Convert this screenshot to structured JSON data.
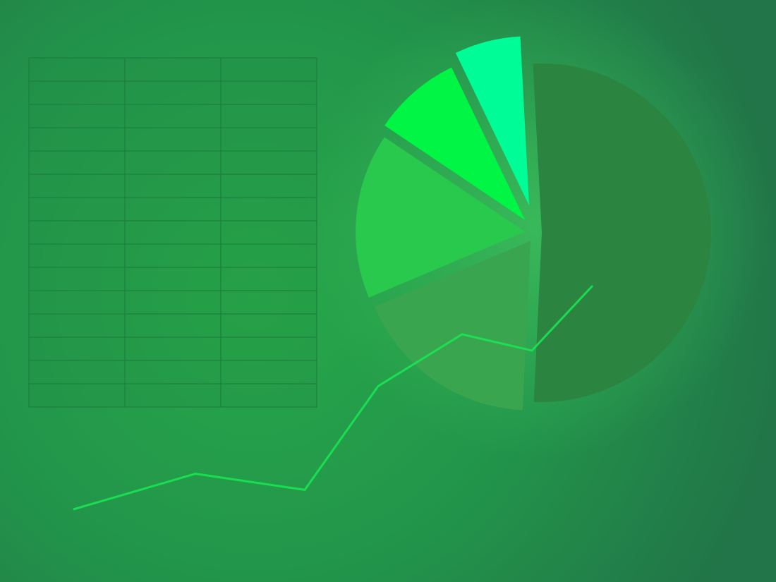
{
  "colors": {
    "background_center": "#27a84a",
    "background_mid": "#22944a",
    "background_edge": "#217548",
    "glow": "#3fc25e",
    "grid_lines": "#1b7a3c",
    "grid_fill": "#228c44",
    "line": "#19e653"
  },
  "table": {
    "rows": 15,
    "columns": 3
  },
  "pie": {
    "slices": [
      {
        "value": 49,
        "color": "#2c8441"
      },
      {
        "value": 17,
        "color": "#3aa54f"
      },
      {
        "value": 15,
        "color": "#28c94d"
      },
      {
        "value": 8,
        "color": "#00f545"
      },
      {
        "value": 6,
        "color": "#00fc96"
      }
    ]
  },
  "trend_line": {
    "values": [
      1,
      2.1,
      1.6,
      4.8,
      6.4,
      5.9,
      7.9
    ]
  }
}
